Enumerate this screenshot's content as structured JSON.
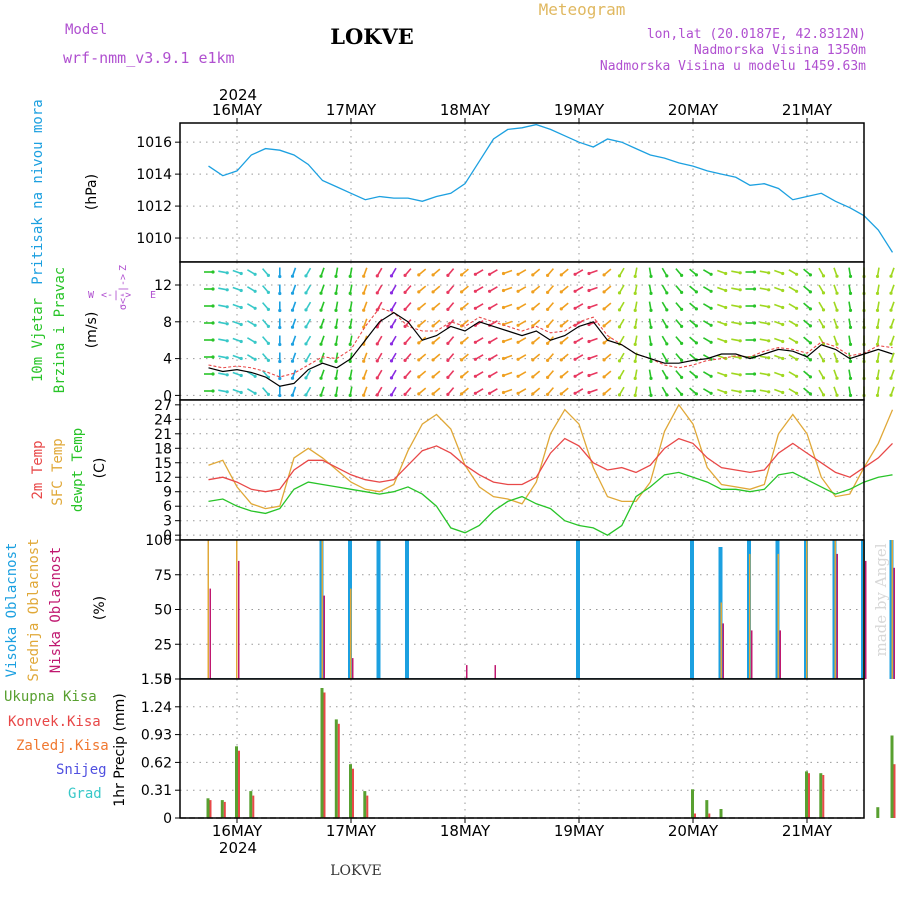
{
  "header": {
    "model_label": "Model",
    "model_name": "wrf-nmm_v3.9.1 e1km",
    "station": "LOKVE",
    "title": "Meteogram",
    "coords": "lon,lat (20.0187E, 42.8312N)",
    "altitude": "Nadmorska Visina 1350m",
    "model_altitude": "Nadmorska Visina u modelu 1459.63m",
    "footer_station": "LOKVE",
    "credit": "made by Angel"
  },
  "colors": {
    "pressure": "#1ca0e0",
    "temp2m": "#e84848",
    "sfc": "#e0a838",
    "dewpt": "#28c428",
    "high_cloud": "#1ca0e0",
    "mid_cloud": "#e0a838",
    "low_cloud": "#c01870",
    "total_precip": "#58a030",
    "conv_precip": "#e84848",
    "frozen": "#f07830",
    "snow": "#5050e0",
    "hail": "#38c8c8",
    "label_purple": "#b050d0",
    "title_gold": "#e0b860"
  },
  "time_axis": {
    "year": "2024",
    "days": [
      "16MAY",
      "17MAY",
      "18MAY",
      "19MAY",
      "20MAY",
      "21MAY"
    ],
    "start_hour_offset": -6,
    "total_hours": 144
  },
  "panels": {
    "pressure": {
      "ylabel_left": "Pritisak na nivou mora",
      "unit": "(hPa)",
      "ticks": [
        "1010",
        "1012",
        "1014",
        "1016"
      ]
    },
    "wind": {
      "ylabel_left1": "10m Vjetar",
      "ylabel_left2": "Brzina i Pravac",
      "unit": "(m/s)",
      "ticks": [
        "0",
        "4",
        "8",
        "12"
      ],
      "compass_w": "W",
      "compass_e": "E",
      "compass_z": "Z",
      "compass_arrow": "<-|->",
      "compass_sigma": "σ<-|->"
    },
    "temperature": {
      "label1": "2m Temp",
      "label2": "SFC Temp",
      "label3": "dewpt Temp",
      "unit": "(C)",
      "ticks": [
        "0",
        "3",
        "6",
        "9",
        "12",
        "15",
        "18",
        "21",
        "24",
        "27"
      ]
    },
    "cloud": {
      "label1": "Visoka Oblacnost",
      "label2": "Srednja Oblacnost",
      "label3": "Niska Oblacnost",
      "unit": "(%)",
      "ticks": [
        "0",
        "25",
        "50",
        "75",
        "100"
      ]
    },
    "precip": {
      "label1": "Ukupna Kisa",
      "label2": "Konvek.Kisa",
      "label3": "Zaledj.Kisa",
      "label4": "Snijeg",
      "label5": "Grad",
      "unit": "1hr Precip (mm)",
      "ticks": [
        "0",
        "0.31",
        "0.62",
        "0.93",
        "1.24",
        "1.55"
      ]
    }
  },
  "chart_data": [
    {
      "type": "line",
      "title": "",
      "ylabel": "Pritisak na nivou mora (hPa)",
      "ylim": [
        1008.5,
        1017.2
      ],
      "x_hours": [
        0,
        3,
        6,
        9,
        12,
        15,
        18,
        21,
        24,
        27,
        30,
        33,
        36,
        39,
        42,
        45,
        48,
        51,
        54,
        57,
        60,
        63,
        66,
        69,
        72,
        75,
        78,
        81,
        84,
        87,
        90,
        93,
        96,
        99,
        102,
        105,
        108,
        111,
        114,
        117,
        120,
        123,
        126,
        129,
        132,
        135,
        138,
        141,
        144
      ],
      "series": [
        {
          "name": "MSLP",
          "values": [
            1014.5,
            1013.9,
            1014.2,
            1015.2,
            1015.6,
            1015.5,
            1015.2,
            1014.6,
            1013.6,
            1013.2,
            1012.8,
            1012.4,
            1012.6,
            1012.5,
            1012.5,
            1012.3,
            1012.6,
            1012.8,
            1013.4,
            1014.8,
            1016.2,
            1016.8,
            1016.9,
            1017.1,
            1016.8,
            1016.4,
            1016.0,
            1015.7,
            1016.2,
            1016.0,
            1015.6,
            1015.2,
            1015.0,
            1014.7,
            1014.5,
            1014.2,
            1014.0,
            1013.8,
            1013.3,
            1013.4,
            1013.1,
            1012.4,
            1012.6,
            1012.8,
            1012.3,
            1011.9,
            1011.4,
            1010.5,
            1009.1
          ]
        }
      ]
    },
    {
      "type": "line",
      "title": "",
      "ylabel": "10m Vjetar Brzina i Pravac (m/s)",
      "ylim": [
        -0.5,
        14.5
      ],
      "x_hours": [
        0,
        3,
        6,
        9,
        12,
        15,
        18,
        21,
        24,
        27,
        30,
        33,
        36,
        39,
        42,
        45,
        48,
        51,
        54,
        57,
        60,
        63,
        66,
        69,
        72,
        75,
        78,
        81,
        84,
        87,
        90,
        93,
        96,
        99,
        102,
        105,
        108,
        111,
        114,
        117,
        120,
        123,
        126,
        129,
        132,
        135,
        138,
        141,
        144
      ],
      "series": [
        {
          "name": "speed",
          "values": [
            3.0,
            2.6,
            2.8,
            2.5,
            2.0,
            1.0,
            1.3,
            2.8,
            3.5,
            3.0,
            4.0,
            6.0,
            8.0,
            9.0,
            8.0,
            6.0,
            6.5,
            7.5,
            7.0,
            8.0,
            7.5,
            7.0,
            6.5,
            7.0,
            6.0,
            6.5,
            7.5,
            8.0,
            6.0,
            5.5,
            4.5,
            4.0,
            3.5,
            3.5,
            3.8,
            4.0,
            4.5,
            4.5,
            4.0,
            4.5,
            5.0,
            4.8,
            4.2,
            5.5,
            5.0,
            4.0,
            4.5,
            5.0,
            4.5
          ]
        },
        {
          "name": "gust",
          "values": [
            3.3,
            3.0,
            3.2,
            3.0,
            2.6,
            2.0,
            2.4,
            3.3,
            4.2,
            4.0,
            5.0,
            7.5,
            9.5,
            9.0,
            7.5,
            7.0,
            7.0,
            8.0,
            7.5,
            8.5,
            8.0,
            7.5,
            7.0,
            7.5,
            6.8,
            7.0,
            8.0,
            8.5,
            6.5,
            5.5,
            4.5,
            4.0,
            3.3,
            3.0,
            3.3,
            3.8,
            4.0,
            4.3,
            4.2,
            4.8,
            5.2,
            5.0,
            4.6,
            5.8,
            5.3,
            4.3,
            4.6,
            5.4,
            5.2
          ]
        }
      ],
      "wind_dir_deg": [
        90,
        100,
        110,
        120,
        140,
        180,
        200,
        210,
        200,
        190,
        190,
        200,
        210,
        210,
        220,
        230,
        230,
        220,
        230,
        240,
        240,
        250,
        240,
        230,
        220,
        230,
        240,
        250,
        230,
        210,
        190,
        170,
        150,
        140,
        130,
        120,
        110,
        100,
        90,
        100,
        110,
        120,
        130,
        150,
        160,
        170,
        180,
        190,
        200
      ]
    },
    {
      "type": "line",
      "title": "",
      "ylabel": "(C)",
      "ylim": [
        -1,
        28
      ],
      "x_hours": [
        0,
        3,
        6,
        9,
        12,
        15,
        18,
        21,
        24,
        27,
        30,
        33,
        36,
        39,
        42,
        45,
        48,
        51,
        54,
        57,
        60,
        63,
        66,
        69,
        72,
        75,
        78,
        81,
        84,
        87,
        90,
        93,
        96,
        99,
        102,
        105,
        108,
        111,
        114,
        117,
        120,
        123,
        126,
        129,
        132,
        135,
        138,
        141,
        144
      ],
      "series": [
        {
          "name": "2m Temp",
          "values": [
            11.5,
            12.0,
            11.0,
            9.5,
            9.0,
            9.5,
            13.5,
            15.5,
            15.5,
            14.0,
            12.5,
            11.5,
            11.0,
            11.5,
            14.5,
            17.5,
            18.5,
            17.0,
            14.5,
            12.5,
            11.0,
            10.5,
            10.5,
            12.0,
            17.0,
            20.0,
            18.5,
            15.0,
            13.5,
            14.0,
            13.0,
            14.5,
            18.0,
            20.0,
            19.0,
            16.0,
            14.0,
            13.5,
            13.0,
            13.5,
            17.0,
            19.0,
            17.0,
            15.0,
            13.0,
            12.0,
            14.0,
            16.0,
            19.0
          ]
        },
        {
          "name": "SFC Temp",
          "values": [
            14.5,
            15.5,
            10.0,
            6.5,
            5.5,
            6.0,
            16.0,
            18.0,
            16.0,
            13.5,
            11.0,
            9.5,
            9.0,
            10.5,
            17.5,
            23.0,
            25.0,
            22.0,
            14.5,
            10.0,
            8.0,
            7.5,
            6.5,
            11.0,
            21.0,
            26.0,
            23.0,
            14.0,
            8.0,
            7.0,
            7.0,
            11.0,
            21.5,
            27.0,
            23.0,
            14.0,
            10.5,
            10.0,
            9.5,
            10.5,
            21.0,
            25.0,
            21.0,
            12.0,
            8.0,
            8.5,
            14.0,
            19.0,
            26.0
          ]
        },
        {
          "name": "dewpt Temp",
          "values": [
            7.0,
            7.5,
            6.0,
            5.0,
            4.5,
            5.5,
            9.5,
            11.0,
            10.5,
            10.0,
            9.5,
            9.0,
            8.5,
            9.0,
            10.0,
            8.5,
            6.0,
            1.5,
            0.5,
            2.0,
            5.0,
            7.0,
            8.0,
            6.5,
            5.5,
            3.0,
            2.0,
            1.5,
            0.0,
            2.0,
            8.0,
            10.0,
            12.5,
            13.0,
            12.0,
            11.0,
            9.5,
            9.5,
            9.0,
            9.5,
            12.5,
            13.0,
            11.5,
            10.0,
            8.5,
            9.5,
            11.0,
            12.0,
            12.5
          ]
        }
      ]
    },
    {
      "type": "bar",
      "title": "",
      "ylabel": "(%)",
      "ylim": [
        0,
        100
      ],
      "x_hours": [
        0,
        6,
        12,
        18,
        24,
        30,
        36,
        42,
        48,
        54,
        60,
        66,
        72,
        78,
        84,
        90,
        96,
        102,
        108,
        114,
        120,
        126,
        132,
        138,
        144
      ],
      "series": [
        {
          "name": "Visoka Oblacnost",
          "values": [
            0,
            0,
            0,
            0,
            100,
            100,
            100,
            100,
            0,
            0,
            0,
            0,
            0,
            100,
            0,
            0,
            0,
            100,
            95,
            100,
            100,
            100,
            100,
            100,
            100
          ]
        },
        {
          "name": "Srednja Oblacnost",
          "values": [
            100,
            100,
            0,
            0,
            100,
            65,
            0,
            0,
            0,
            0,
            0,
            0,
            0,
            0,
            0,
            0,
            0,
            0,
            55,
            90,
            90,
            100,
            100,
            100,
            100
          ]
        },
        {
          "name": "Niska Oblacnost",
          "values": [
            65,
            85,
            0,
            0,
            60,
            15,
            0,
            0,
            0,
            10,
            10,
            0,
            0,
            0,
            0,
            0,
            0,
            0,
            40,
            35,
            35,
            0,
            90,
            85,
            80
          ]
        }
      ]
    },
    {
      "type": "bar",
      "title": "",
      "ylabel": "1hr Precip (mm)",
      "ylim": [
        0,
        1.55
      ],
      "x_hours": [
        0,
        3,
        6,
        9,
        12,
        15,
        18,
        21,
        24,
        27,
        30,
        33,
        36,
        39,
        42,
        45,
        48,
        51,
        54,
        57,
        60,
        63,
        66,
        69,
        72,
        75,
        78,
        81,
        84,
        87,
        90,
        93,
        96,
        99,
        102,
        105,
        108,
        111,
        114,
        117,
        120,
        123,
        126,
        129,
        132,
        135,
        138,
        141,
        144
      ],
      "series": [
        {
          "name": "Ukupna Kisa",
          "values": [
            0.22,
            0.2,
            0.8,
            0.3,
            0,
            0,
            0,
            0,
            1.45,
            1.1,
            0.6,
            0.3,
            0,
            0,
            0,
            0,
            0,
            0,
            0,
            0,
            0,
            0,
            0,
            0,
            0,
            0,
            0,
            0,
            0,
            0,
            0,
            0,
            0,
            0,
            0.32,
            0.2,
            0.1,
            0,
            0,
            0,
            0,
            0,
            0.52,
            0.5,
            0,
            0,
            0,
            0.12,
            0.92
          ]
        },
        {
          "name": "Konvek.Kisa",
          "values": [
            0.2,
            0.18,
            0.75,
            0.25,
            0,
            0,
            0,
            0,
            1.4,
            1.05,
            0.55,
            0.25,
            0,
            0,
            0,
            0,
            0,
            0,
            0,
            0,
            0,
            0,
            0,
            0,
            0,
            0,
            0,
            0,
            0,
            0,
            0,
            0,
            0,
            0,
            0.05,
            0.05,
            0,
            0,
            0,
            0,
            0,
            0,
            0.5,
            0.48,
            0,
            0,
            0,
            0,
            0.6
          ]
        }
      ]
    }
  ]
}
